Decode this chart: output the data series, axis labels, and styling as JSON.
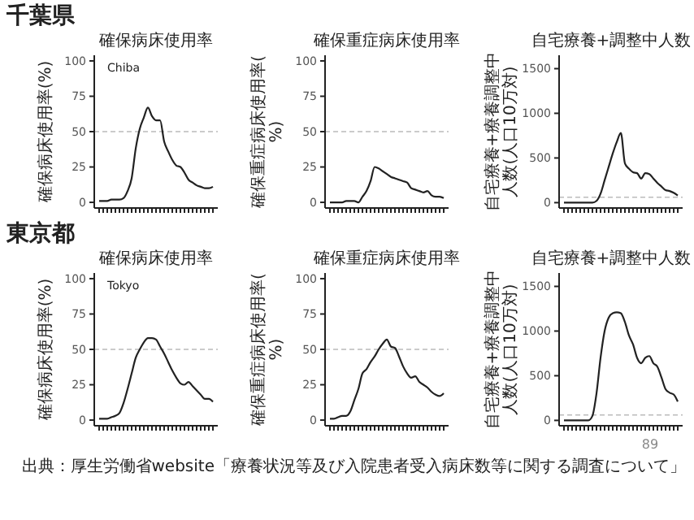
{
  "chart_data": [
    {
      "type": "line",
      "title": "確保病床使用率",
      "ylabel": "確保病床使用率(%)",
      "annotations": [
        "千葉県",
        "Chiba"
      ],
      "categories": [
        null,
        null,
        null,
        null,
        null,
        null,
        null,
        null,
        null,
        null,
        null,
        null,
        null,
        null,
        null,
        null,
        null,
        null,
        null,
        null,
        null,
        null,
        null,
        null,
        null,
        null,
        null,
        null,
        null
      ],
      "series": [
        {
          "color": "#222222",
          "values": [
            1,
            1,
            1,
            2,
            2,
            2,
            3,
            8,
            17,
            38,
            52,
            60,
            67,
            61,
            58,
            58,
            43,
            36,
            30,
            26,
            25,
            21,
            16,
            14,
            12,
            11,
            10,
            10,
            11
          ]
        }
      ],
      "ylim": [
        -4,
        104
      ],
      "yticks": [
        0,
        25,
        50,
        75,
        100
      ],
      "ref_lines": [
        {
          "axis": "y",
          "value": 50,
          "color": "#bbbbbb",
          "line_style": "dashed"
        }
      ]
    },
    {
      "type": "line",
      "title": "確保重症病床使用率",
      "ylabel": "確保重症病床使用率(%)",
      "categories": [
        null,
        null,
        null,
        null,
        null,
        null,
        null,
        null,
        null,
        null,
        null,
        null,
        null,
        null,
        null,
        null,
        null,
        null,
        null,
        null,
        null,
        null,
        null,
        null,
        null,
        null,
        null,
        null,
        null
      ],
      "series": [
        {
          "color": "#222222",
          "values": [
            0,
            0,
            0,
            0,
            1,
            1,
            1,
            0,
            4,
            8,
            15,
            25,
            24,
            22,
            20,
            18,
            17,
            16,
            15,
            14,
            10,
            9,
            8,
            7,
            8,
            5,
            4,
            4,
            3
          ]
        }
      ],
      "ylim": [
        -4,
        104
      ],
      "yticks": [
        0,
        25,
        50,
        75,
        100
      ],
      "ref_lines": [
        {
          "axis": "y",
          "value": 50,
          "color": "#bbbbbb",
          "line_style": "dashed"
        }
      ]
    },
    {
      "type": "line",
      "title": "自宅療養+調整中人数",
      "ylabel": "自宅療養+療養調整中人数(人口10万対)",
      "categories": [
        null,
        null,
        null,
        null,
        null,
        null,
        null,
        null,
        null,
        null,
        null,
        null,
        null,
        null,
        null,
        null,
        null,
        null,
        null,
        null,
        null,
        null,
        null,
        null,
        null,
        null,
        null,
        null,
        null
      ],
      "series": [
        {
          "color": "#222222",
          "values": [
            0,
            0,
            0,
            0,
            0,
            0,
            0,
            0,
            20,
            100,
            250,
            400,
            550,
            680,
            780,
            440,
            380,
            340,
            330,
            270,
            330,
            320,
            270,
            220,
            180,
            140,
            130,
            110,
            80
          ]
        }
      ],
      "ylim": [
        -60,
        1650
      ],
      "yticks": [
        0,
        500,
        1000,
        1500
      ],
      "ref_lines": [
        {
          "axis": "y",
          "value": 60,
          "color": "#bbbbbb",
          "line_style": "dashed"
        }
      ]
    },
    {
      "type": "line",
      "title": "確保病床使用率",
      "ylabel": "確保病床使用率(%)",
      "annotations": [
        "東京都",
        "Tokyo"
      ],
      "categories": [
        null,
        null,
        null,
        null,
        null,
        null,
        null,
        null,
        null,
        null,
        null,
        null,
        null,
        null,
        null,
        null,
        null,
        null,
        null,
        null,
        null,
        null,
        null,
        null,
        null,
        null,
        null,
        null,
        null
      ],
      "series": [
        {
          "color": "#222222",
          "values": [
            1,
            1,
            1,
            2,
            3,
            5,
            12,
            22,
            33,
            44,
            50,
            55,
            58,
            58,
            57,
            52,
            47,
            41,
            35,
            30,
            26,
            25,
            27,
            24,
            21,
            18,
            15,
            15,
            13
          ]
        }
      ],
      "ylim": [
        -4,
        104
      ],
      "yticks": [
        0,
        25,
        50,
        75,
        100
      ],
      "ref_lines": [
        {
          "axis": "y",
          "value": 50,
          "color": "#bbbbbb",
          "line_style": "dashed"
        }
      ]
    },
    {
      "type": "line",
      "title": "確保重症病床使用率",
      "ylabel": "確保重症病床使用率(%)",
      "categories": [
        null,
        null,
        null,
        null,
        null,
        null,
        null,
        null,
        null,
        null,
        null,
        null,
        null,
        null,
        null,
        null,
        null,
        null,
        null,
        null,
        null,
        null,
        null,
        null,
        null,
        null,
        null,
        null,
        null
      ],
      "series": [
        {
          "color": "#222222",
          "values": [
            1,
            1,
            2,
            3,
            3,
            6,
            14,
            22,
            33,
            36,
            41,
            45,
            50,
            54,
            57,
            52,
            51,
            45,
            38,
            33,
            30,
            31,
            27,
            25,
            23,
            20,
            18,
            17,
            19
          ]
        }
      ],
      "ylim": [
        -4,
        104
      ],
      "yticks": [
        0,
        25,
        50,
        75,
        100
      ],
      "ref_lines": [
        {
          "axis": "y",
          "value": 50,
          "color": "#bbbbbb",
          "line_style": "dashed"
        }
      ]
    },
    {
      "type": "line",
      "title": "自宅療養+調整中人数",
      "ylabel": "自宅療養+療養調整中人数(人口10万対)",
      "annotations": [
        "89",
        "出典：厚生労働省website「療養状況等及び入院患者受入病床数等に関する調査について」"
      ],
      "categories": [
        null,
        null,
        null,
        null,
        null,
        null,
        null,
        null,
        null,
        null,
        null,
        null,
        null,
        null,
        null,
        null,
        null,
        null,
        null,
        null,
        null,
        null,
        null,
        null,
        null,
        null,
        null,
        null,
        null
      ],
      "series": [
        {
          "color": "#222222",
          "values": [
            0,
            0,
            0,
            0,
            0,
            0,
            0,
            50,
            300,
            700,
            1000,
            1150,
            1200,
            1210,
            1200,
            1100,
            950,
            850,
            700,
            640,
            700,
            720,
            640,
            600,
            480,
            350,
            310,
            290,
            210
          ]
        }
      ],
      "ylim": [
        -60,
        1650
      ],
      "yticks": [
        0,
        500,
        1000,
        1500
      ],
      "ref_lines": [
        {
          "axis": "y",
          "value": 60,
          "color": "#bbbbbb",
          "line_style": "dashed"
        }
      ]
    }
  ]
}
